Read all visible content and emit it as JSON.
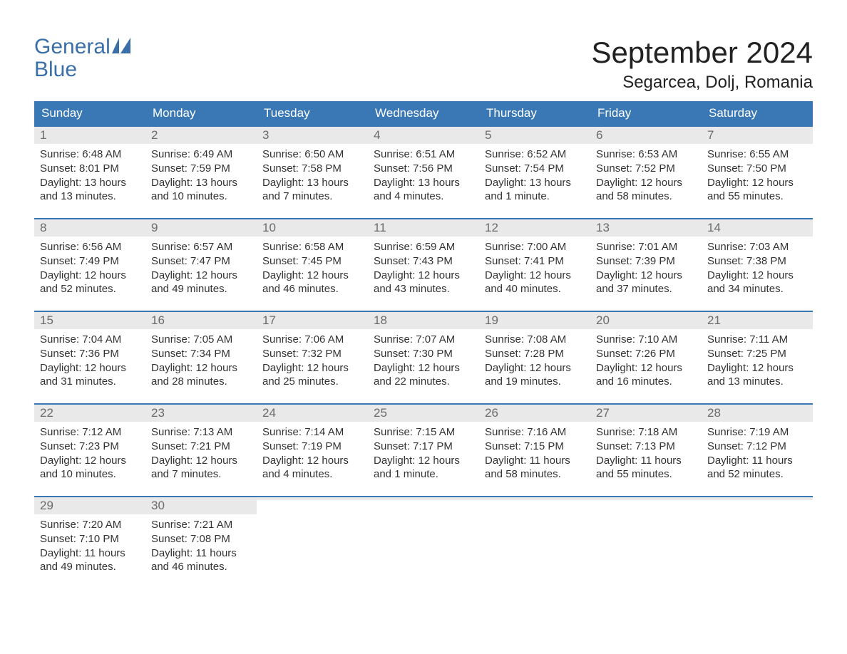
{
  "brand": {
    "line1": "General",
    "line2": "Blue",
    "color": "#3a6fa8"
  },
  "title": "September 2024",
  "location": "Segarcea, Dolj, Romania",
  "colors": {
    "header_bg": "#3a78b5",
    "header_text": "#ffffff",
    "week_border": "#3a78b5",
    "daynum_bg": "#e9e9e9",
    "daynum_text": "#6b6b6b",
    "body_text": "#333333",
    "page_bg": "#ffffff"
  },
  "days_of_week": [
    "Sunday",
    "Monday",
    "Tuesday",
    "Wednesday",
    "Thursday",
    "Friday",
    "Saturday"
  ],
  "weeks": [
    [
      {
        "n": "1",
        "sunrise": "Sunrise: 6:48 AM",
        "sunset": "Sunset: 8:01 PM",
        "d1": "Daylight: 13 hours",
        "d2": "and 13 minutes."
      },
      {
        "n": "2",
        "sunrise": "Sunrise: 6:49 AM",
        "sunset": "Sunset: 7:59 PM",
        "d1": "Daylight: 13 hours",
        "d2": "and 10 minutes."
      },
      {
        "n": "3",
        "sunrise": "Sunrise: 6:50 AM",
        "sunset": "Sunset: 7:58 PM",
        "d1": "Daylight: 13 hours",
        "d2": "and 7 minutes."
      },
      {
        "n": "4",
        "sunrise": "Sunrise: 6:51 AM",
        "sunset": "Sunset: 7:56 PM",
        "d1": "Daylight: 13 hours",
        "d2": "and 4 minutes."
      },
      {
        "n": "5",
        "sunrise": "Sunrise: 6:52 AM",
        "sunset": "Sunset: 7:54 PM",
        "d1": "Daylight: 13 hours",
        "d2": "and 1 minute."
      },
      {
        "n": "6",
        "sunrise": "Sunrise: 6:53 AM",
        "sunset": "Sunset: 7:52 PM",
        "d1": "Daylight: 12 hours",
        "d2": "and 58 minutes."
      },
      {
        "n": "7",
        "sunrise": "Sunrise: 6:55 AM",
        "sunset": "Sunset: 7:50 PM",
        "d1": "Daylight: 12 hours",
        "d2": "and 55 minutes."
      }
    ],
    [
      {
        "n": "8",
        "sunrise": "Sunrise: 6:56 AM",
        "sunset": "Sunset: 7:49 PM",
        "d1": "Daylight: 12 hours",
        "d2": "and 52 minutes."
      },
      {
        "n": "9",
        "sunrise": "Sunrise: 6:57 AM",
        "sunset": "Sunset: 7:47 PM",
        "d1": "Daylight: 12 hours",
        "d2": "and 49 minutes."
      },
      {
        "n": "10",
        "sunrise": "Sunrise: 6:58 AM",
        "sunset": "Sunset: 7:45 PM",
        "d1": "Daylight: 12 hours",
        "d2": "and 46 minutes."
      },
      {
        "n": "11",
        "sunrise": "Sunrise: 6:59 AM",
        "sunset": "Sunset: 7:43 PM",
        "d1": "Daylight: 12 hours",
        "d2": "and 43 minutes."
      },
      {
        "n": "12",
        "sunrise": "Sunrise: 7:00 AM",
        "sunset": "Sunset: 7:41 PM",
        "d1": "Daylight: 12 hours",
        "d2": "and 40 minutes."
      },
      {
        "n": "13",
        "sunrise": "Sunrise: 7:01 AM",
        "sunset": "Sunset: 7:39 PM",
        "d1": "Daylight: 12 hours",
        "d2": "and 37 minutes."
      },
      {
        "n": "14",
        "sunrise": "Sunrise: 7:03 AM",
        "sunset": "Sunset: 7:38 PM",
        "d1": "Daylight: 12 hours",
        "d2": "and 34 minutes."
      }
    ],
    [
      {
        "n": "15",
        "sunrise": "Sunrise: 7:04 AM",
        "sunset": "Sunset: 7:36 PM",
        "d1": "Daylight: 12 hours",
        "d2": "and 31 minutes."
      },
      {
        "n": "16",
        "sunrise": "Sunrise: 7:05 AM",
        "sunset": "Sunset: 7:34 PM",
        "d1": "Daylight: 12 hours",
        "d2": "and 28 minutes."
      },
      {
        "n": "17",
        "sunrise": "Sunrise: 7:06 AM",
        "sunset": "Sunset: 7:32 PM",
        "d1": "Daylight: 12 hours",
        "d2": "and 25 minutes."
      },
      {
        "n": "18",
        "sunrise": "Sunrise: 7:07 AM",
        "sunset": "Sunset: 7:30 PM",
        "d1": "Daylight: 12 hours",
        "d2": "and 22 minutes."
      },
      {
        "n": "19",
        "sunrise": "Sunrise: 7:08 AM",
        "sunset": "Sunset: 7:28 PM",
        "d1": "Daylight: 12 hours",
        "d2": "and 19 minutes."
      },
      {
        "n": "20",
        "sunrise": "Sunrise: 7:10 AM",
        "sunset": "Sunset: 7:26 PM",
        "d1": "Daylight: 12 hours",
        "d2": "and 16 minutes."
      },
      {
        "n": "21",
        "sunrise": "Sunrise: 7:11 AM",
        "sunset": "Sunset: 7:25 PM",
        "d1": "Daylight: 12 hours",
        "d2": "and 13 minutes."
      }
    ],
    [
      {
        "n": "22",
        "sunrise": "Sunrise: 7:12 AM",
        "sunset": "Sunset: 7:23 PM",
        "d1": "Daylight: 12 hours",
        "d2": "and 10 minutes."
      },
      {
        "n": "23",
        "sunrise": "Sunrise: 7:13 AM",
        "sunset": "Sunset: 7:21 PM",
        "d1": "Daylight: 12 hours",
        "d2": "and 7 minutes."
      },
      {
        "n": "24",
        "sunrise": "Sunrise: 7:14 AM",
        "sunset": "Sunset: 7:19 PM",
        "d1": "Daylight: 12 hours",
        "d2": "and 4 minutes."
      },
      {
        "n": "25",
        "sunrise": "Sunrise: 7:15 AM",
        "sunset": "Sunset: 7:17 PM",
        "d1": "Daylight: 12 hours",
        "d2": "and 1 minute."
      },
      {
        "n": "26",
        "sunrise": "Sunrise: 7:16 AM",
        "sunset": "Sunset: 7:15 PM",
        "d1": "Daylight: 11 hours",
        "d2": "and 58 minutes."
      },
      {
        "n": "27",
        "sunrise": "Sunrise: 7:18 AM",
        "sunset": "Sunset: 7:13 PM",
        "d1": "Daylight: 11 hours",
        "d2": "and 55 minutes."
      },
      {
        "n": "28",
        "sunrise": "Sunrise: 7:19 AM",
        "sunset": "Sunset: 7:12 PM",
        "d1": "Daylight: 11 hours",
        "d2": "and 52 minutes."
      }
    ],
    [
      {
        "n": "29",
        "sunrise": "Sunrise: 7:20 AM",
        "sunset": "Sunset: 7:10 PM",
        "d1": "Daylight: 11 hours",
        "d2": "and 49 minutes."
      },
      {
        "n": "30",
        "sunrise": "Sunrise: 7:21 AM",
        "sunset": "Sunset: 7:08 PM",
        "d1": "Daylight: 11 hours",
        "d2": "and 46 minutes."
      },
      {
        "n": "",
        "sunrise": "",
        "sunset": "",
        "d1": "",
        "d2": ""
      },
      {
        "n": "",
        "sunrise": "",
        "sunset": "",
        "d1": "",
        "d2": ""
      },
      {
        "n": "",
        "sunrise": "",
        "sunset": "",
        "d1": "",
        "d2": ""
      },
      {
        "n": "",
        "sunrise": "",
        "sunset": "",
        "d1": "",
        "d2": ""
      },
      {
        "n": "",
        "sunrise": "",
        "sunset": "",
        "d1": "",
        "d2": ""
      }
    ]
  ]
}
